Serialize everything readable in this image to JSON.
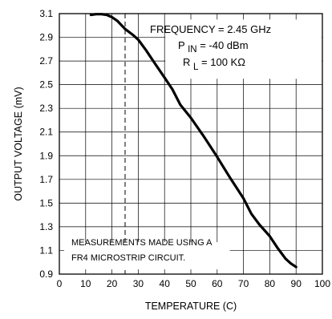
{
  "chart_data": {
    "type": "line",
    "xlabel": "TEMPERATURE (C)",
    "ylabel": "OUTPUT VOLTAGE (mV)",
    "xlim": [
      0,
      100
    ],
    "ylim": [
      0.9,
      3.1
    ],
    "x_ticks": [
      "0",
      "10",
      "20",
      "30",
      "40",
      "50",
      "60",
      "70",
      "80",
      "90",
      "100"
    ],
    "y_ticks": [
      "0.9",
      "1.1",
      "1.3",
      "1.5",
      "1.7",
      "1.9",
      "2.1",
      "2.3",
      "2.5",
      "2.7",
      "2.9",
      "3.1"
    ],
    "grid": true,
    "series": [
      {
        "x": [
          12,
          14,
          16,
          18,
          20,
          22,
          25,
          28,
          30,
          33,
          36,
          40,
          43,
          46,
          50,
          55,
          60,
          65,
          70,
          73,
          76,
          80,
          83,
          86,
          88,
          90
        ],
        "y": [
          3.09,
          3.095,
          3.095,
          3.09,
          3.07,
          3.04,
          2.97,
          2.92,
          2.88,
          2.79,
          2.69,
          2.56,
          2.46,
          2.33,
          2.22,
          2.06,
          1.89,
          1.71,
          1.54,
          1.41,
          1.32,
          1.22,
          1.12,
          1.03,
          0.99,
          0.96
        ]
      }
    ],
    "reference_line": {
      "x": 25,
      "style": "dashed"
    },
    "annotations": {
      "frequency": "FREQUENCY = 2.45 GHz",
      "pin_label": "P",
      "pin_sub": "IN",
      "pin_value": "= -40 dBm",
      "rl_label": "R",
      "rl_sub": "L",
      "rl_value": "= 100 KΩ",
      "note_line1": "MEASUREMENTS MADE USING A",
      "note_line2": "FR4 MICROSTRIP CIRCUIT."
    }
  }
}
